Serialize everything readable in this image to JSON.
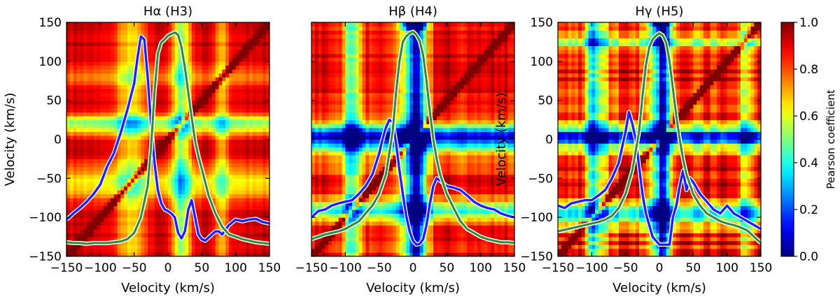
{
  "chart_data": [
    {
      "type": "heatmap",
      "title": "Hα (H3)",
      "xlabel": "Velocity (km/s)",
      "ylabel": "Velocity (km/s)",
      "xlim": [
        -150,
        150
      ],
      "ylim": [
        -150,
        150
      ],
      "xticks": [
        -150,
        -100,
        -50,
        0,
        50,
        100,
        150
      ],
      "yticks": [
        -150,
        -100,
        -50,
        0,
        50,
        100,
        150
      ],
      "xtick_labels": [
        "−150",
        "−100",
        "−50",
        "0",
        "50",
        "100",
        "150"
      ],
      "ytick_labels": [
        "−150",
        "−100",
        "−50",
        "0",
        "50",
        "100",
        "150"
      ],
      "heatmap_features": {
        "base": 0.93,
        "low_bands": [
          [
            20,
            13,
            0.42
          ],
          [
            80,
            12,
            0.2
          ],
          [
            -55,
            22,
            0.28
          ]
        ],
        "top_strength": 0.0,
        "noise": 0.03
      },
      "series": [
        {
          "name": "blue profile",
          "color": "#1f1fff",
          "x": [
            -150,
            -140,
            -130,
            -120,
            -110,
            -100,
            -90,
            -80,
            -70,
            -60,
            -50,
            -45,
            -40,
            -35,
            -30,
            -25,
            -20,
            -15,
            -10,
            -5,
            0,
            5,
            10,
            15,
            20,
            25,
            30,
            35,
            40,
            45,
            50,
            55,
            60,
            65,
            70,
            75,
            80,
            90,
            100,
            110,
            120,
            130,
            140,
            150
          ],
          "y": [
            -103,
            -95,
            -88,
            -80,
            -70,
            -58,
            -35,
            -18,
            8,
            38,
            72,
            105,
            132,
            128,
            80,
            20,
            -30,
            -65,
            -82,
            -90,
            -92,
            -95,
            -100,
            -120,
            -127,
            -118,
            -90,
            -78,
            -100,
            -122,
            -128,
            -130,
            -126,
            -122,
            -118,
            -118,
            -122,
            -110,
            -103,
            -105,
            -103,
            -102,
            -106,
            -108
          ]
        },
        {
          "name": "green profile",
          "color": "#2e8b2e",
          "x": [
            -150,
            -140,
            -130,
            -120,
            -110,
            -100,
            -90,
            -80,
            -70,
            -60,
            -50,
            -40,
            -30,
            -25,
            -20,
            -15,
            -10,
            -5,
            0,
            5,
            10,
            15,
            20,
            25,
            30,
            35,
            40,
            45,
            50,
            55,
            60,
            70,
            80,
            90,
            100,
            110,
            120,
            130,
            140,
            150
          ],
          "y": [
            -132,
            -133,
            -133,
            -134,
            -133,
            -133,
            -133,
            -132,
            -131,
            -128,
            -120,
            -100,
            -60,
            -10,
            60,
            110,
            124,
            128,
            133,
            135,
            137,
            134,
            118,
            92,
            60,
            28,
            -2,
            -22,
            -38,
            -55,
            -72,
            -95,
            -112,
            -122,
            -125,
            -128,
            -130,
            -132,
            -133,
            -134
          ]
        }
      ]
    },
    {
      "type": "heatmap",
      "title": "Hβ (H4)",
      "xlabel": "Velocity (km/s)",
      "ylabel": "",
      "xlim": [
        -150,
        150
      ],
      "ylim": [
        -150,
        150
      ],
      "xticks": [
        -150,
        -100,
        -50,
        0,
        50,
        100,
        150
      ],
      "yticks": [
        -150,
        -100,
        -50,
        0,
        50,
        100,
        150
      ],
      "xtick_labels": [
        "−150",
        "−100",
        "−50",
        "0",
        "50",
        "100",
        "150"
      ],
      "ytick_labels": [],
      "heatmap_features": {
        "base": 0.9,
        "low_bands": [
          [
            5,
            14,
            0.62
          ],
          [
            -5,
            28,
            0.22
          ],
          [
            -90,
            14,
            0.45
          ]
        ],
        "top_strength": 0.85,
        "noise": 0.06
      },
      "series": [
        {
          "name": "blue profile",
          "color": "#1f1fff",
          "x": [
            -150,
            -140,
            -130,
            -120,
            -110,
            -100,
            -90,
            -80,
            -70,
            -60,
            -50,
            -45,
            -40,
            -35,
            -30,
            -25,
            -20,
            -15,
            -10,
            -5,
            0,
            5,
            10,
            15,
            20,
            25,
            30,
            35,
            40,
            50,
            60,
            70,
            80,
            90,
            100,
            110,
            120,
            130,
            140,
            150
          ],
          "y": [
            -100,
            -92,
            -90,
            -85,
            -82,
            -80,
            -78,
            -70,
            -60,
            -45,
            -18,
            0,
            15,
            25,
            22,
            -5,
            -40,
            -70,
            -98,
            -118,
            -130,
            -135,
            -134,
            -128,
            -110,
            -82,
            -60,
            -50,
            -53,
            -60,
            -62,
            -65,
            -72,
            -80,
            -85,
            -88,
            -90,
            -95,
            -98,
            -100
          ]
        },
        {
          "name": "green profile",
          "color": "#2e8b2e",
          "x": [
            -150,
            -140,
            -130,
            -120,
            -110,
            -100,
            -90,
            -80,
            -70,
            -60,
            -50,
            -40,
            -30,
            -25,
            -20,
            -15,
            -10,
            -5,
            0,
            5,
            10,
            15,
            20,
            25,
            30,
            35,
            40,
            50,
            60,
            70,
            80,
            90,
            100,
            110,
            120,
            130,
            140,
            150
          ],
          "y": [
            -128,
            -125,
            -122,
            -120,
            -118,
            -115,
            -110,
            -105,
            -95,
            -85,
            -70,
            -45,
            10,
            60,
            100,
            125,
            132,
            136,
            138,
            134,
            126,
            108,
            75,
            35,
            0,
            -25,
            -45,
            -70,
            -88,
            -105,
            -115,
            -120,
            -125,
            -128,
            -130,
            -132,
            -132,
            -133
          ]
        }
      ]
    },
    {
      "type": "heatmap",
      "title": "Hγ (H5)",
      "xlabel": "Velocity (km/s)",
      "ylabel": "Velocity (km/s)",
      "xlim": [
        -150,
        150
      ],
      "ylim": [
        -150,
        150
      ],
      "xticks": [
        -150,
        -100,
        -50,
        0,
        50,
        100,
        150
      ],
      "yticks": [
        -150,
        -100,
        -50,
        0,
        50,
        100,
        150
      ],
      "xtick_labels": [
        "−150",
        "−100",
        "−50",
        "0",
        "50",
        "100",
        "150"
      ],
      "ytick_labels": [
        "−150",
        "−100",
        "−50",
        "0",
        "50",
        "100",
        "150"
      ],
      "heatmap_features": {
        "base": 0.88,
        "low_bands": [
          [
            5,
            12,
            0.55
          ],
          [
            -2,
            22,
            0.2
          ],
          [
            -95,
            16,
            0.45
          ],
          [
            125,
            10,
            0.28
          ]
        ],
        "top_strength": 0.55,
        "noise": 0.1
      },
      "series": [
        {
          "name": "blue profile",
          "color": "#1f1fff",
          "x": [
            -150,
            -140,
            -130,
            -120,
            -110,
            -100,
            -90,
            -80,
            -70,
            -60,
            -55,
            -50,
            -45,
            -40,
            -35,
            -30,
            -25,
            -20,
            -15,
            -10,
            -5,
            0,
            5,
            10,
            15,
            20,
            25,
            30,
            35,
            40,
            45,
            50,
            60,
            70,
            80,
            90,
            100,
            110,
            120,
            130,
            140,
            150
          ],
          "y": [
            -85,
            -88,
            -82,
            -80,
            -78,
            -78,
            -72,
            -65,
            -50,
            -30,
            -10,
            10,
            35,
            20,
            0,
            -35,
            -70,
            -95,
            -110,
            -125,
            -130,
            -135,
            -135,
            -135,
            -135,
            -100,
            -85,
            -60,
            -40,
            -65,
            -50,
            -55,
            -70,
            -80,
            -90,
            -95,
            -85,
            -95,
            -100,
            -105,
            -110,
            -115
          ]
        },
        {
          "name": "green profile",
          "color": "#2e8b2e",
          "x": [
            -150,
            -140,
            -130,
            -120,
            -110,
            -100,
            -90,
            -80,
            -70,
            -60,
            -50,
            -40,
            -30,
            -25,
            -20,
            -15,
            -10,
            -5,
            0,
            5,
            10,
            15,
            20,
            25,
            30,
            35,
            40,
            50,
            60,
            70,
            80,
            90,
            100,
            110,
            120,
            130,
            140,
            150
          ],
          "y": [
            -118,
            -116,
            -114,
            -112,
            -110,
            -108,
            -106,
            -103,
            -98,
            -88,
            -70,
            -40,
            10,
            55,
            95,
            118,
            128,
            133,
            136,
            133,
            124,
            100,
            65,
            30,
            0,
            -25,
            -45,
            -70,
            -85,
            -95,
            -100,
            -105,
            -108,
            -110,
            -113,
            -117,
            -125,
            -133
          ]
        }
      ]
    }
  ],
  "colorbar": {
    "label": "Pearson coefficient",
    "range": [
      0.0,
      1.0
    ],
    "ticks": [
      0.0,
      0.2,
      0.4,
      0.6,
      0.8,
      1.0
    ],
    "tick_labels": [
      "0.0",
      "0.2",
      "0.4",
      "0.6",
      "0.8",
      "1.0"
    ],
    "colormap": "jet"
  }
}
